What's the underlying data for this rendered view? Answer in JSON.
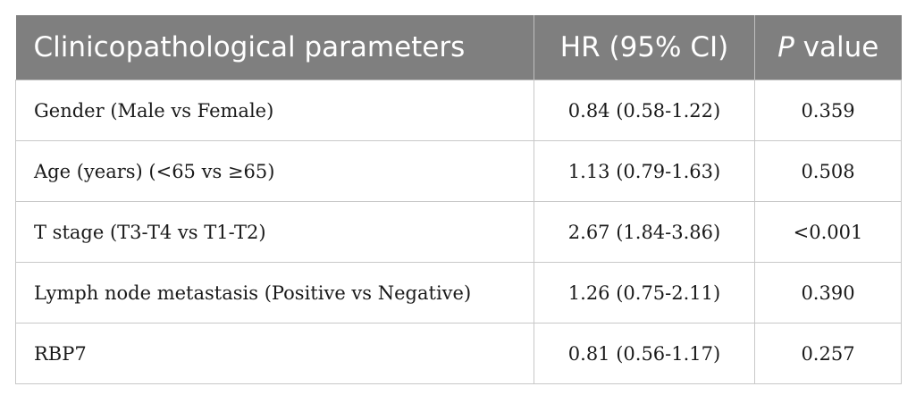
{
  "table": {
    "headers": {
      "parameter": "Clinicopathological parameters",
      "hr": "HR (95% CI)",
      "p_italic": "P",
      "p_rest": " value"
    },
    "rows": [
      {
        "parameter": "Gender (Male vs Female)",
        "hr": "0.84 (0.58-1.22)",
        "p": "0.359"
      },
      {
        "parameter": "Age (years) (<65 vs ≥65)",
        "hr": "1.13 (0.79-1.63)",
        "p": "0.508"
      },
      {
        "parameter": "T stage (T3-T4 vs T1-T2)",
        "hr": "2.67 (1.84-3.86)",
        "p": "<0.001"
      },
      {
        "parameter": "Lymph node metastasis (Positive vs Negative)",
        "hr": "1.26 (0.75-2.11)",
        "p": "0.390"
      },
      {
        "parameter": "RBP7",
        "hr": "0.81 (0.56-1.17)",
        "p": "0.257"
      }
    ],
    "colors": {
      "header_bg": "#7f7f7f",
      "header_text": "#ffffff",
      "border": "#c8c8c8"
    }
  }
}
